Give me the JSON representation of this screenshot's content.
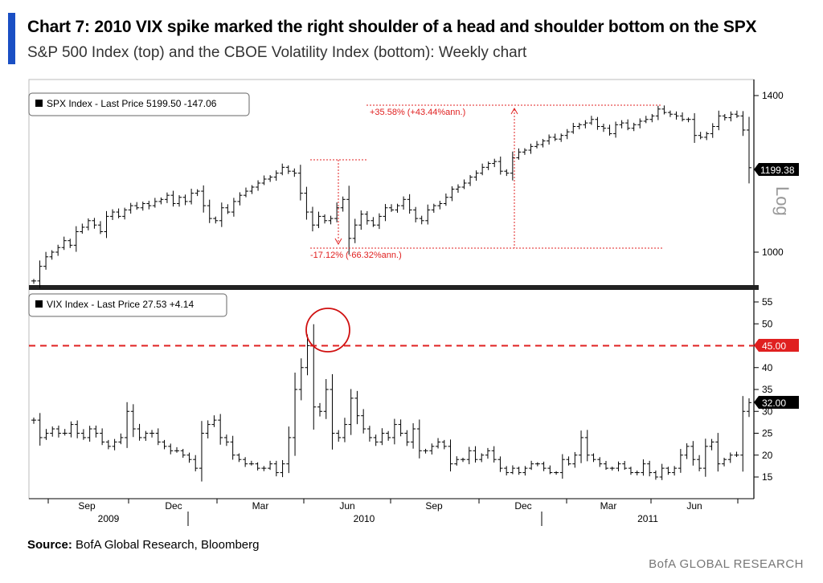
{
  "header": {
    "title": "Chart 7: 2010 VIX spike marked the right shoulder of a head and shoulder bottom on the SPX",
    "subtitle": "S&P 500 Index (top) and the CBOE Volatility Index (bottom): Weekly chart",
    "accent_color": "#1a4fc4"
  },
  "footer": {
    "source_label": "Source:",
    "source_text": "BofA Global Research, Bloomberg",
    "brand": "BofA GLOBAL RESEARCH"
  },
  "chart_data": [
    {
      "type": "ohlc",
      "panel": "top",
      "legend": "SPX Index - Last Price 5199.50  -147.06",
      "scale": "log",
      "scale_label": "Log",
      "yticks": [
        1000,
        1400
      ],
      "ylim": [
        940,
        1440
      ],
      "last_value_label": "1199.38",
      "annotations": [
        {
          "text": "+35.58% (+43.44%ann.)",
          "color": "#e02020"
        },
        {
          "text": "-17.12% (-66.32%ann.)",
          "color": "#e02020"
        }
      ],
      "x_ticks": [
        "Sep",
        "Dec",
        "Mar",
        "Jun",
        "Sep",
        "Dec",
        "Mar",
        "Jun"
      ],
      "x_years": [
        "2009",
        "2010",
        "2011"
      ],
      "weekly_close": [
        940,
        970,
        990,
        1000,
        1010,
        1025,
        1015,
        1045,
        1055,
        1070,
        1060,
        1045,
        1080,
        1090,
        1080,
        1095,
        1105,
        1100,
        1110,
        1105,
        1115,
        1120,
        1130,
        1110,
        1125,
        1115,
        1135,
        1140,
        1105,
        1075,
        1070,
        1100,
        1090,
        1115,
        1130,
        1140,
        1150,
        1160,
        1170,
        1175,
        1185,
        1200,
        1190,
        1185,
        1135,
        1090,
        1060,
        1080,
        1070,
        1075,
        1100,
        1120,
        1030,
        1060,
        1085,
        1070,
        1060,
        1080,
        1100,
        1095,
        1105,
        1120,
        1095,
        1075,
        1070,
        1095,
        1105,
        1110,
        1125,
        1145,
        1150,
        1160,
        1175,
        1185,
        1200,
        1210,
        1215,
        1190,
        1185,
        1225,
        1240,
        1245,
        1255,
        1260,
        1270,
        1280,
        1275,
        1285,
        1295,
        1310,
        1315,
        1320,
        1330,
        1310,
        1305,
        1290,
        1315,
        1320,
        1305,
        1315,
        1325,
        1330,
        1340,
        1360,
        1350,
        1345,
        1340,
        1330,
        1330,
        1285,
        1280,
        1290,
        1310,
        1340,
        1335,
        1345,
        1340,
        1300,
        1199
      ]
    },
    {
      "type": "ohlc",
      "panel": "bottom",
      "legend": "VIX Index - Last Price 27.53  +4.14",
      "yticks": [
        15,
        20,
        25,
        30,
        35,
        40,
        45,
        50,
        55
      ],
      "ylim": [
        12,
        57
      ],
      "reference_line": {
        "value": 45,
        "label": "45.00",
        "color": "#e02020"
      },
      "last_value_label": "32.00",
      "weekly_close": [
        28,
        24,
        25,
        26,
        25,
        25,
        27,
        25,
        24,
        26,
        25,
        23,
        22,
        23,
        24,
        30,
        26,
        24,
        25,
        25,
        23,
        22,
        21,
        21,
        20,
        19,
        17,
        25,
        27,
        28,
        24,
        23,
        20,
        19,
        18,
        18,
        17,
        17,
        18,
        16,
        18,
        24,
        35,
        40,
        45,
        31,
        30,
        35,
        25,
        24,
        27,
        33,
        29,
        26,
        24,
        23,
        25,
        24,
        27,
        25,
        23,
        26,
        21,
        21,
        22,
        23,
        22,
        18,
        19,
        19,
        21,
        19,
        20,
        21,
        19,
        17,
        16,
        17,
        16,
        17,
        18,
        18,
        17,
        16,
        16,
        19,
        18,
        20,
        24,
        20,
        19,
        18,
        17,
        17,
        18,
        17,
        16,
        16,
        18,
        16,
        15,
        17,
        16,
        17,
        20,
        22,
        19,
        17,
        22,
        23,
        18,
        19,
        20,
        20,
        30,
        32
      ]
    }
  ]
}
